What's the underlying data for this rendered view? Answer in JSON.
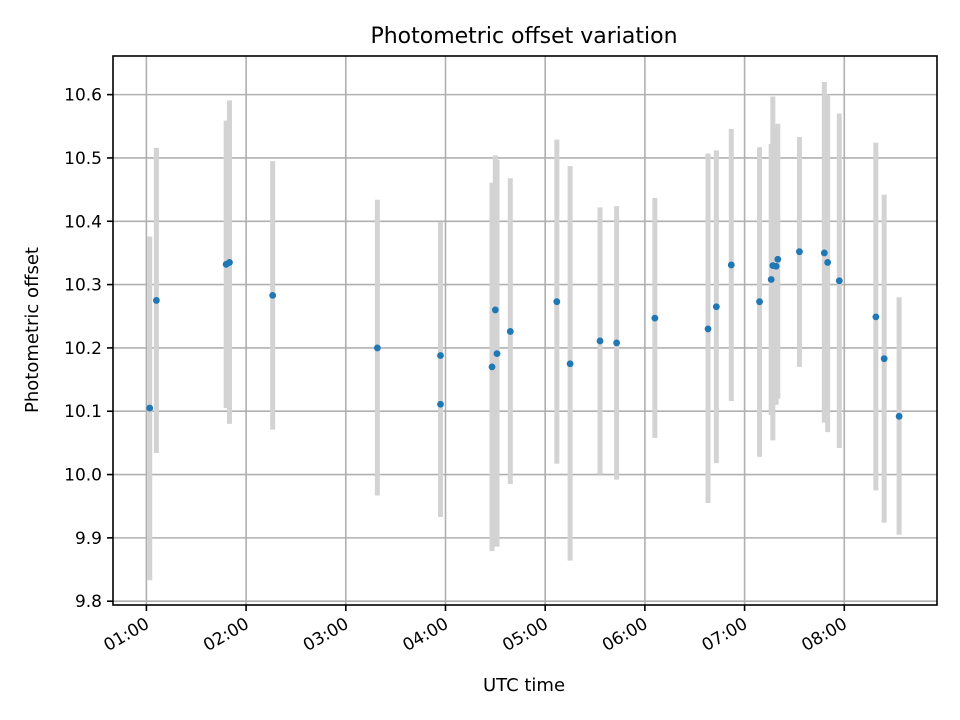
{
  "chart_data": {
    "type": "scatter",
    "title": "Photometric offset variation",
    "xlabel": "UTC time",
    "ylabel": "Photometric offset",
    "x_range_hours": [
      0.665,
      8.93
    ],
    "ylim": [
      9.794,
      10.661
    ],
    "x_ticks": [
      {
        "hour": 1,
        "label": "01:00"
      },
      {
        "hour": 2,
        "label": "02:00"
      },
      {
        "hour": 3,
        "label": "03:00"
      },
      {
        "hour": 4,
        "label": "04:00"
      },
      {
        "hour": 5,
        "label": "05:00"
      },
      {
        "hour": 6,
        "label": "06:00"
      },
      {
        "hour": 7,
        "label": "07:00"
      },
      {
        "hour": 8,
        "label": "08:00"
      }
    ],
    "y_ticks": [
      9.8,
      9.9,
      10.0,
      10.1,
      10.2,
      10.3,
      10.4,
      10.5,
      10.6
    ],
    "y_tick_labels": [
      "9.8",
      "9.9",
      "10.0",
      "10.1",
      "10.2",
      "10.3",
      "10.4",
      "10.5",
      "10.6"
    ],
    "grid": true,
    "colors": {
      "point": "#1f77b4",
      "errorbar": "#d3d3d3"
    },
    "points": [
      {
        "time": "01:02",
        "y": 10.105,
        "lo": 9.833,
        "hi": 10.376
      },
      {
        "time": "01:06",
        "y": 10.275,
        "lo": 10.034,
        "hi": 10.516
      },
      {
        "time": "01:48",
        "y": 10.332,
        "lo": 10.105,
        "hi": 10.559
      },
      {
        "time": "01:50",
        "y": 10.335,
        "lo": 10.08,
        "hi": 10.591
      },
      {
        "time": "02:16",
        "y": 10.283,
        "lo": 10.071,
        "hi": 10.495
      },
      {
        "time": "03:19",
        "y": 10.2,
        "lo": 9.967,
        "hi": 10.434
      },
      {
        "time": "03:57",
        "y": 10.188,
        "lo": 9.977,
        "hi": 10.399
      },
      {
        "time": "03:57",
        "y": 10.111,
        "lo": 9.933,
        "hi": 10.29
      },
      {
        "time": "04:28",
        "y": 10.17,
        "lo": 9.879,
        "hi": 10.461
      },
      {
        "time": "04:30",
        "y": 10.26,
        "lo": 10.016,
        "hi": 10.504
      },
      {
        "time": "04:31",
        "y": 10.191,
        "lo": 9.886,
        "hi": 10.497
      },
      {
        "time": "04:39",
        "y": 10.226,
        "lo": 9.985,
        "hi": 10.468
      },
      {
        "time": "05:07",
        "y": 10.273,
        "lo": 10.017,
        "hi": 10.529
      },
      {
        "time": "05:15",
        "y": 10.175,
        "lo": 9.864,
        "hi": 10.487
      },
      {
        "time": "05:33",
        "y": 10.211,
        "lo": 10.0,
        "hi": 10.422
      },
      {
        "time": "05:43",
        "y": 10.208,
        "lo": 9.992,
        "hi": 10.424
      },
      {
        "time": "06:06",
        "y": 10.247,
        "lo": 10.058,
        "hi": 10.437
      },
      {
        "time": "06:38",
        "y": 10.23,
        "lo": 9.955,
        "hi": 10.507
      },
      {
        "time": "06:43",
        "y": 10.265,
        "lo": 10.018,
        "hi": 10.512
      },
      {
        "time": "06:52",
        "y": 10.331,
        "lo": 10.116,
        "hi": 10.546
      },
      {
        "time": "07:09",
        "y": 10.273,
        "lo": 10.028,
        "hi": 10.517
      },
      {
        "time": "07:16",
        "y": 10.308,
        "lo": 10.094,
        "hi": 10.522
      },
      {
        "time": "07:17",
        "y": 10.33,
        "lo": 10.054,
        "hi": 10.597
      },
      {
        "time": "07:19",
        "y": 10.329,
        "lo": 10.11,
        "hi": 10.548
      },
      {
        "time": "07:20",
        "y": 10.34,
        "lo": 10.12,
        "hi": 10.554
      },
      {
        "time": "07:33",
        "y": 10.352,
        "lo": 10.17,
        "hi": 10.533
      },
      {
        "time": "07:48",
        "y": 10.35,
        "lo": 10.082,
        "hi": 10.62
      },
      {
        "time": "07:50",
        "y": 10.335,
        "lo": 10.067,
        "hi": 10.6
      },
      {
        "time": "07:57",
        "y": 10.306,
        "lo": 10.042,
        "hi": 10.57
      },
      {
        "time": "08:19",
        "y": 10.249,
        "lo": 9.975,
        "hi": 10.524
      },
      {
        "time": "08:24",
        "y": 10.183,
        "lo": 9.924,
        "hi": 10.442
      },
      {
        "time": "08:33",
        "y": 10.092,
        "lo": 9.905,
        "hi": 10.28
      }
    ]
  }
}
